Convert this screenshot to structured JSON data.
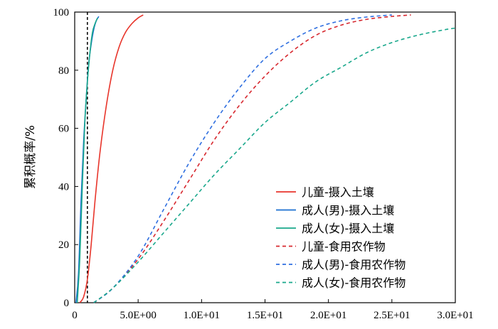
{
  "chart_data": {
    "type": "line",
    "title": "",
    "xlabel": "",
    "ylabel": "累积概率/%",
    "xlim": [
      0,
      30
    ],
    "ylim": [
      0,
      100
    ],
    "x_ticks": [
      0,
      5,
      10,
      15,
      20,
      25,
      30
    ],
    "x_tick_labels": [
      "0",
      "5.0E+00",
      "1.0E+01",
      "1.5E+01",
      "2.0E+01",
      "2.5E+01",
      "3.0E+01"
    ],
    "y_ticks": [
      0,
      20,
      40,
      60,
      80,
      100
    ],
    "y_tick_labels": [
      "0",
      "20",
      "40",
      "60",
      "80",
      "100"
    ],
    "grid": false,
    "legend_position": "bottom-right",
    "reference_line": {
      "orientation": "vertical",
      "x": 1.0,
      "style": "dashed",
      "color": "#000000"
    },
    "series": [
      {
        "name": "儿童-摄入土壤",
        "style": "solid",
        "color": "#e8352b",
        "x": [
          0.4,
          0.7,
          1.0,
          1.3,
          1.6,
          2.0,
          2.5,
          3.0,
          3.5,
          4.0,
          4.5,
          5.0,
          5.4
        ],
        "y": [
          0,
          2,
          8,
          20,
          35,
          52,
          68,
          80,
          88,
          93,
          96,
          98,
          99
        ]
      },
      {
        "name": "成人(男)-摄入土壤",
        "style": "solid",
        "color": "#1a6fd0",
        "x": [
          0.1,
          0.3,
          0.5,
          0.7,
          0.9,
          1.1,
          1.3,
          1.5,
          1.7,
          1.9
        ],
        "y": [
          0,
          10,
          35,
          55,
          70,
          82,
          89,
          94,
          97,
          98.5
        ]
      },
      {
        "name": "成人(女)-摄入土壤",
        "style": "solid",
        "color": "#1aa88c",
        "x": [
          0.2,
          0.4,
          0.6,
          0.8,
          1.0,
          1.2,
          1.4,
          1.6,
          1.8
        ],
        "y": [
          0,
          15,
          40,
          62,
          76,
          86,
          93,
          96,
          98
        ]
      },
      {
        "name": "儿童-食用农作物",
        "style": "dashed",
        "color": "#d7282f",
        "x": [
          1.5,
          3,
          5,
          7,
          9,
          11,
          13,
          15,
          17,
          19,
          21,
          23,
          25,
          26.5
        ],
        "y": [
          0,
          5,
          15,
          28,
          42,
          56,
          68,
          78,
          86,
          92,
          95.5,
          97.5,
          98.5,
          99
        ]
      },
      {
        "name": "成人(男)-食用农作物",
        "style": "dashed",
        "color": "#2f6fe0",
        "x": [
          1.5,
          3,
          5,
          7,
          9,
          11,
          13,
          15,
          17,
          19,
          21,
          23,
          25
        ],
        "y": [
          0,
          5,
          16,
          32,
          48,
          62,
          74,
          84,
          90,
          94.5,
          97,
          98.3,
          99
        ]
      },
      {
        "name": "成人(女)-食用农作物",
        "style": "dashed",
        "color": "#1aa88c",
        "x": [
          1.5,
          3,
          5,
          7,
          9,
          11,
          13,
          15,
          17,
          19,
          21,
          23,
          25,
          27,
          29,
          30
        ],
        "y": [
          0,
          5,
          14,
          24,
          34,
          44,
          53,
          62,
          69,
          76,
          81,
          86,
          89.5,
          92,
          93.8,
          94.5
        ]
      }
    ]
  }
}
